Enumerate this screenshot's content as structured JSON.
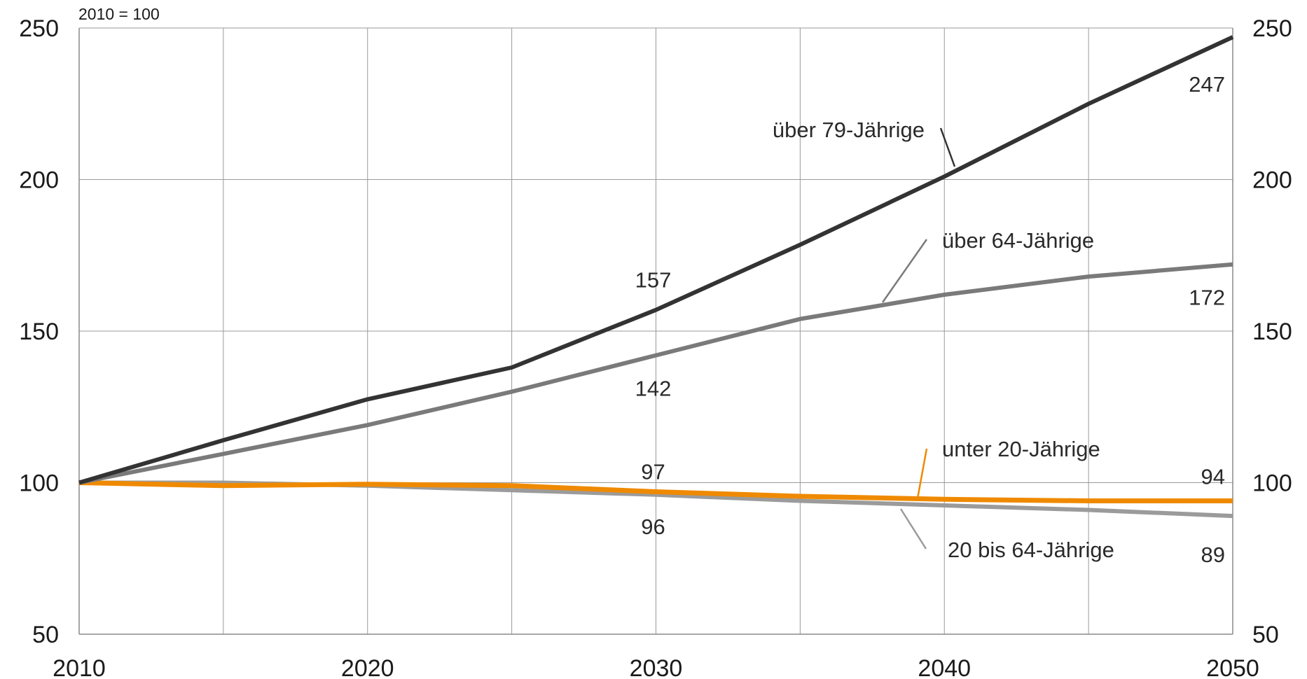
{
  "chart_data": {
    "type": "line",
    "unit_label": "2010 = 100",
    "x": [
      2010,
      2015,
      2020,
      2025,
      2030,
      2035,
      2040,
      2045,
      2050
    ],
    "xlim": [
      2010,
      2050
    ],
    "ylim": [
      50,
      250
    ],
    "x_ticks": [
      2010,
      2020,
      2030,
      2040,
      2050
    ],
    "y_ticks": [
      50,
      100,
      150,
      200,
      250
    ],
    "grid": true,
    "series": [
      {
        "name": "über 79-Jährige",
        "color": "#333333",
        "values": [
          100,
          114,
          127.5,
          138,
          157,
          178.5,
          201,
          225,
          247
        ]
      },
      {
        "name": "über 64-Jährige",
        "color": "#7a7a7a",
        "values": [
          100,
          109.5,
          119,
          130,
          142,
          154,
          162,
          168,
          172
        ]
      },
      {
        "name": "unter 20-Jährige",
        "color": "#ef8a00",
        "values": [
          100,
          99,
          99.5,
          99,
          97,
          95.5,
          94.5,
          94,
          94
        ]
      },
      {
        "name": "20 bis 64-Jährige",
        "color": "#9b9b9b",
        "values": [
          100,
          100,
          99,
          97.5,
          96,
          94,
          92.5,
          91,
          89
        ]
      }
    ],
    "data_labels": [
      {
        "text": "157",
        "x": 2030,
        "y": 157
      },
      {
        "text": "142",
        "x": 2030,
        "y": 142
      },
      {
        "text": "97",
        "x": 2030,
        "y": 97
      },
      {
        "text": "96",
        "x": 2030,
        "y": 96
      },
      {
        "text": "247",
        "x": 2050,
        "y": 247
      },
      {
        "text": "172",
        "x": 2050,
        "y": 172
      },
      {
        "text": "94",
        "x": 2050,
        "y": 94
      },
      {
        "text": "89",
        "x": 2050,
        "y": 89
      }
    ]
  }
}
